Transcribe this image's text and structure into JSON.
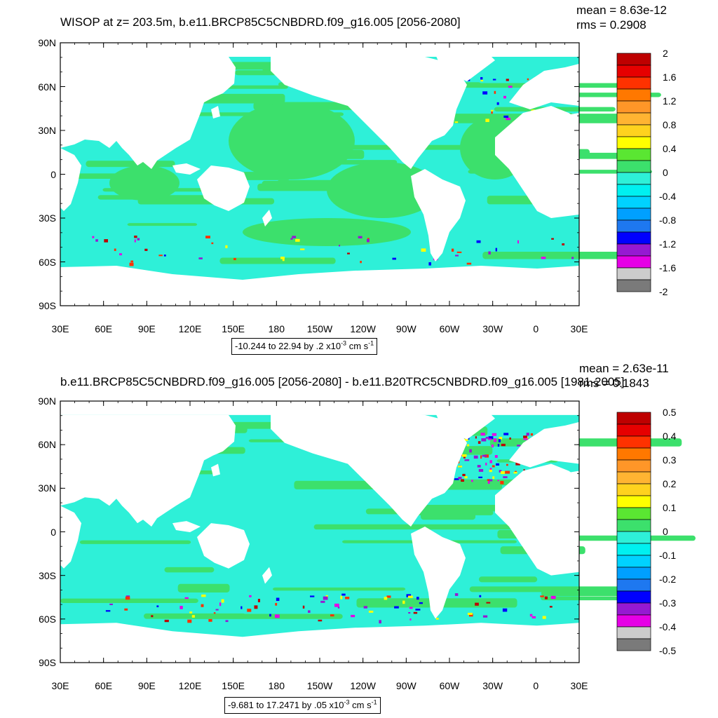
{
  "panels": [
    {
      "title": "WISOP at z= 203.5m, b.e11.BRCP85C5CNBDRD.f09_g16.005 [2056-2080]",
      "mean": "mean = 8.63e-12",
      "rms": "rms = 0.2908",
      "range_label": "-10.244 to 22.94 by .2 x10",
      "range_exp": "-3",
      "range_unit": " cm s",
      "range_unit_exp": "-1",
      "colorbar_labels": [
        "2",
        "1.6",
        "1.2",
        "0.8",
        "0.4",
        "0",
        "-0.4",
        "-0.8",
        "-1.2",
        "-1.6",
        "-2"
      ]
    },
    {
      "title": "b.e11.BRCP85C5CNBDRD.f09_g16.005 [2056-2080] - b.e11.B20TRC5CNBDRD.f09_g16.005 [1981-2005]",
      "mean": "mean = 2.63e-11",
      "rms": "rms = 0.1843",
      "range_label": "-9.681 to 17.2471 by .05 x10",
      "range_exp": "-3",
      "range_unit": " cm s",
      "range_unit_exp": "-1",
      "colorbar_labels": [
        "0.5",
        "0.4",
        "0.3",
        "0.2",
        "0.1",
        "0",
        "-0.1",
        "-0.2",
        "-0.3",
        "-0.4",
        "-0.5"
      ]
    }
  ],
  "lat_labels": [
    "90N",
    "60N",
    "30N",
    "0",
    "30S",
    "60S",
    "90S"
  ],
  "lon_labels": [
    "30E",
    "60E",
    "90E",
    "120E",
    "150E",
    "180",
    "150W",
    "120W",
    "90W",
    "60W",
    "30W",
    "0",
    "30E"
  ],
  "colors": {
    "ocean_base": "#2ef0d8",
    "ocean_band": "#3ce06c",
    "colorbar": [
      "#7a7a7a",
      "#cccccc",
      "#e600e6",
      "#9619d2",
      "#0000ff",
      "#1e78f0",
      "#00a0ff",
      "#00d2ff",
      "#00f0f0",
      "#2ef0d8",
      "#3ce06c",
      "#5ae632",
      "#ffff00",
      "#ffd21e",
      "#ffb432",
      "#ff9628",
      "#ff7800",
      "#ff3200",
      "#e60000",
      "#be0000"
    ]
  }
}
